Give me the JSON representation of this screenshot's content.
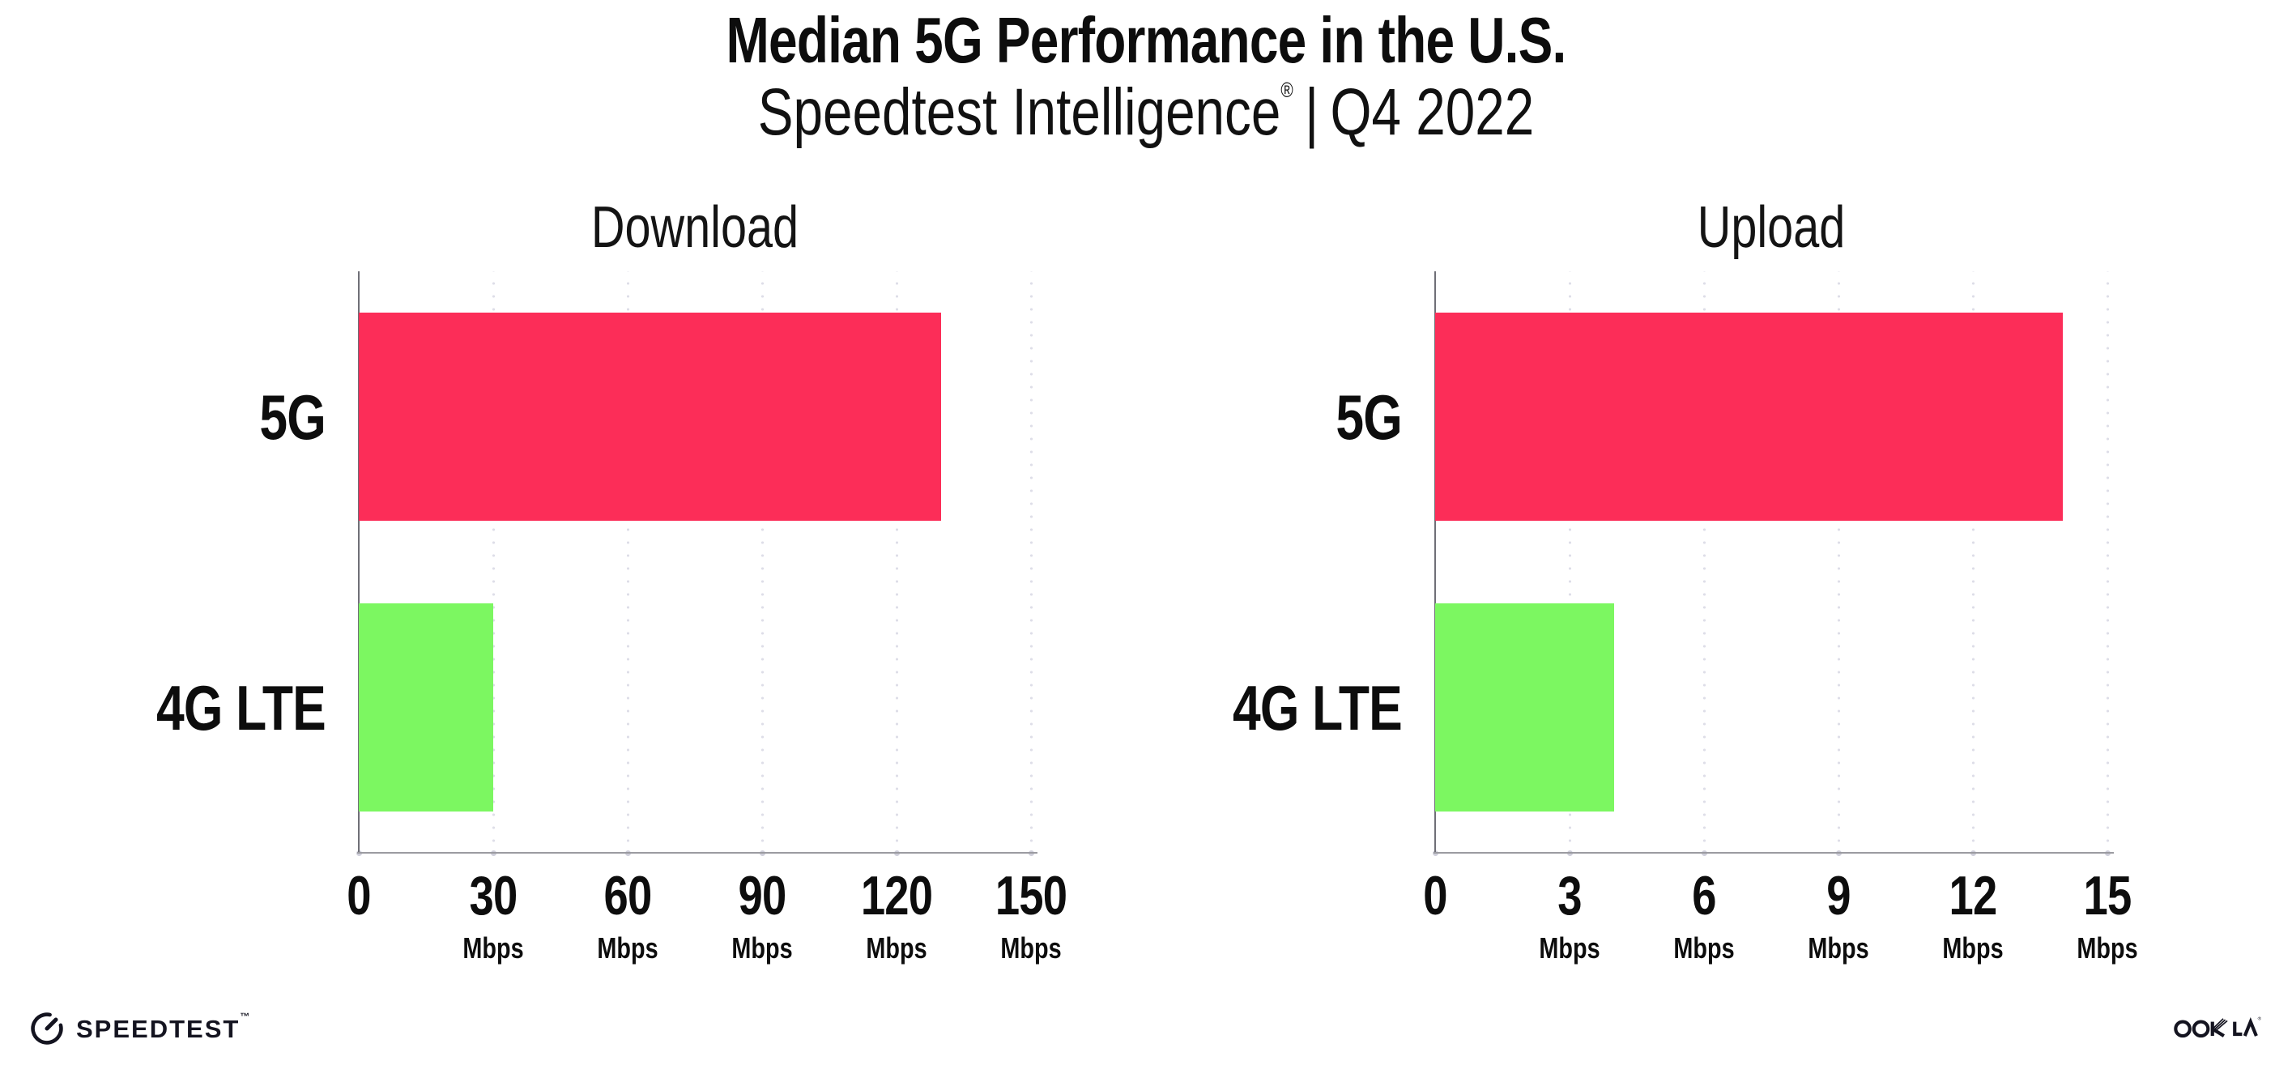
{
  "page": {
    "title": "Median 5G Performance in the U.S.",
    "subtitle_brand": "Speedtest Intelligence",
    "subtitle_reg": "®",
    "subtitle_sep": "|",
    "subtitle_period": "Q4 2022"
  },
  "chart_data": [
    {
      "type": "bar",
      "orientation": "horizontal",
      "title": "Download",
      "categories": [
        "5G",
        "4G LTE"
      ],
      "values": [
        130,
        30
      ],
      "unit": "Mbps",
      "xlim": [
        0,
        150
      ],
      "xticks": [
        0,
        30,
        60,
        90,
        120,
        150
      ],
      "bar_colors": [
        "#FC2D58",
        "#7CF761"
      ],
      "grid": "dotted-vertical",
      "legend": "none"
    },
    {
      "type": "bar",
      "orientation": "horizontal",
      "title": "Upload",
      "categories": [
        "5G",
        "4G LTE"
      ],
      "values": [
        14,
        4
      ],
      "unit": "Mbps",
      "xlim": [
        0,
        15
      ],
      "xticks": [
        0,
        3,
        6,
        9,
        12,
        15
      ],
      "bar_colors": [
        "#FC2D58",
        "#7CF761"
      ],
      "grid": "dotted-vertical",
      "legend": "none"
    }
  ],
  "footer": {
    "speedtest_label": "SPEEDTEST",
    "speedtest_mark": "™",
    "ookla_label": "OOKLA",
    "ookla_mark": "®"
  },
  "colors": {
    "bar_5g": "#FC2D58",
    "bar_4g_lte": "#7CF761",
    "axis_line": "#9b9ba1",
    "y_axis_line": "#6f6f77",
    "gridline_dots": "#dedee8",
    "text": "#0d0d0d",
    "logo": "#141420",
    "background": "#ffffff"
  }
}
